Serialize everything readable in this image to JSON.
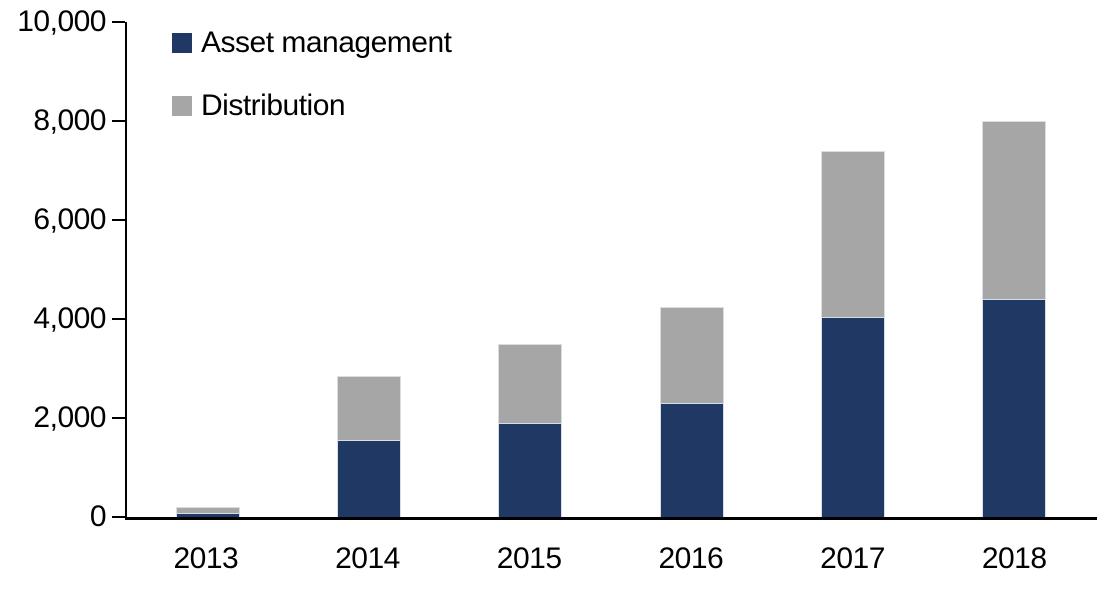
{
  "chart_data": {
    "type": "bar",
    "stacked": true,
    "title": "",
    "xlabel": "",
    "ylabel": "",
    "categories": [
      "2013",
      "2014",
      "2015",
      "2016",
      "2017",
      "2018"
    ],
    "series": [
      {
        "name": "Asset management",
        "color": "#1f3864",
        "values": [
          80,
          1550,
          1900,
          2300,
          4050,
          4400
        ]
      },
      {
        "name": "Distribution",
        "color": "#a6a6a6",
        "values": [
          120,
          1300,
          1600,
          1950,
          3350,
          3600
        ]
      }
    ],
    "ylim": [
      0,
      10000
    ],
    "ytick_values": [
      0,
      2000,
      4000,
      6000,
      8000,
      10000
    ],
    "ytick_labels": [
      "0",
      "2,000",
      "4,000",
      "6,000",
      "8,000",
      "10,000"
    ],
    "legend_position": "top-left",
    "grid": false,
    "colors": {
      "axis": "#000000",
      "background": "#ffffff"
    }
  }
}
